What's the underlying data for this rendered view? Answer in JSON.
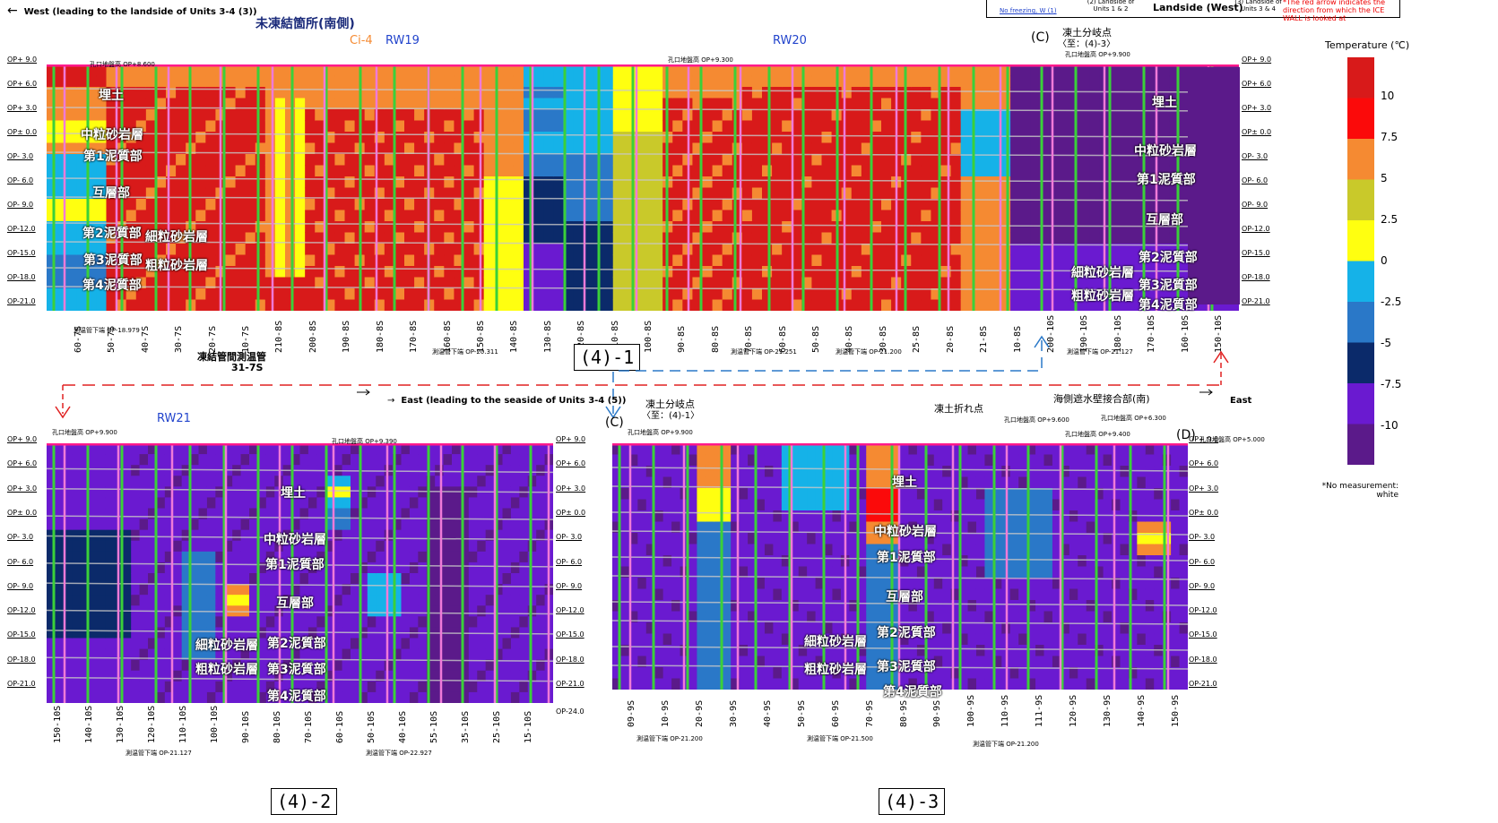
{
  "header": {
    "west_label": "West  (leading to the landside of Units 3-4 (3))",
    "east_label": "East  (leading to the seaside of Units 3-4 (5))",
    "east_short": "East",
    "legend_left_small": "No freezing, W (1)",
    "legend_mid_small": "(2) Landside of Units 1 & 2",
    "legend_landside": "Landside (West)",
    "legend_right_small": "(3) Landside of Units 3 & 4",
    "red_arrow_note": "*The red arrow indicates the direction from which the ICE WALL is looked at"
  },
  "colorbar": {
    "title": "Temperature (℃)",
    "ticks": [
      "10",
      "7.5",
      "5",
      "2.5",
      "0",
      "-2.5",
      "-5",
      "-7.5",
      "-10"
    ],
    "colors": [
      "#d81a1a",
      "#fb0a0a",
      "#f58a32",
      "#c9c92a",
      "#ffff10",
      "#15b2e8",
      "#2a78c8",
      "#0b2a6a",
      "#6a1ad0",
      "#5b1a8a"
    ],
    "no_measurement_note": "*No measurement: white"
  },
  "sections": {
    "s41": "(4)-1",
    "s42": "(4)-2",
    "s43": "(4)-3"
  },
  "labels": {
    "unfrozen": "未凍結箇所(南側)",
    "ci4": "Ci-4",
    "rw19": "RW19",
    "rw20": "RW20",
    "rw21": "RW21",
    "c_branch_top": "凍土分岐点",
    "c_branch_top2": "〈至：(4)-3〉",
    "c_branch_bot": "凍土分岐点",
    "c_branch_bot2": "〈至：(4)-1〉",
    "bend": "凍土折れ点",
    "seawall": "海側遮水壁接合部(南)",
    "c_mark": "(C)",
    "d_mark": "(D)",
    "pipe_label": "凍結管間測温管",
    "pipe_label2": "31-7S"
  },
  "strata": {
    "s1": [
      "埋土",
      "中粒砂岩層",
      "第1泥質部",
      "互層部",
      "第2泥質部",
      "細粒砂岩層",
      "第3泥質部",
      "粗粒砂岩層",
      "第4泥質部"
    ],
    "s1r": [
      "埋土",
      "中粒砂岩層",
      "第1泥質部",
      "互層部",
      "第2泥質部",
      "細粒砂岩層",
      "第3泥質部",
      "粗粒砂岩層",
      "第4泥質部"
    ],
    "s2": [
      "埋土",
      "中粒砂岩層",
      "第1泥質部",
      "互層部",
      "細粒砂岩層",
      "第2泥質部",
      "粗粒砂岩層",
      "第3泥質部",
      "第4泥質部"
    ],
    "s3": [
      "埋土",
      "中粒砂岩層",
      "第1泥質部",
      "互層部",
      "細粒砂岩層",
      "第2泥質部",
      "粗粒砂岩層",
      "第3泥質部",
      "第4泥質部"
    ]
  },
  "op_levels": [
    "OP+ 9.0",
    "OP+ 6.0",
    "OP+ 3.0",
    "OP± 0.0",
    "OP- 3.0",
    "OP- 6.0",
    "OP- 9.0",
    "OP-12.0",
    "OP-15.0",
    "OP-18.0",
    "OP-21.0"
  ],
  "op_extra": "OP-24.0",
  "ticks_s1": [
    "60-7S",
    "50-7S",
    "40-7S",
    "30-7S",
    "20-7S",
    "10-7S",
    "210-8S",
    "200-8S",
    "190-8S",
    "180-8S",
    "170-8S",
    "160-8S",
    "150-8S",
    "140-8S",
    "130-8S",
    "120-8S",
    "110-8S",
    "100-8S",
    "90-8S",
    "80-8S",
    "70-8S",
    "60-8S",
    "50-8S",
    "40-8S",
    "30-8S",
    "25-8S",
    "20-8S",
    "21-8S",
    "10-8S",
    "200-10S",
    "190-10S",
    "180-10S",
    "170-10S",
    "160-10S",
    "150-10S"
  ],
  "ticks_s2": [
    "150-10S",
    "140-10S",
    "130-10S",
    "120-10S",
    "110-10S",
    "100-10S",
    "90-10S",
    "80-10S",
    "70-10S",
    "60-10S",
    "50-10S",
    "40-10S",
    "55-10S",
    "35-10S",
    "25-10S",
    "15-10S"
  ],
  "ticks_s3": [
    "09-9S",
    "10-9S",
    "20-9S",
    "30-9S",
    "40-9S",
    "50-9S",
    "60-9S",
    "70-9S",
    "80-9S",
    "90-9S",
    "100-9S",
    "110-9S",
    "111-9S",
    "120-9S",
    "130-9S",
    "140-9S",
    "150-9S"
  ],
  "notes": {
    "s1_a": "測温管下端 OP-18.979",
    "s1_b": "測温管下端 OP-20.311",
    "s1_c": "測温管下端 OP-21.251",
    "s1_d": "測温管下端 OP-21.200",
    "s1_e": "測温管下端 OP-21.127",
    "s2_a": "測温管下端 OP-21.127",
    "s2_b": "測温管下端 OP-22.927",
    "s3_a": "測温管下端 OP-21.200",
    "s3_b": "測温管下端 OP-21.500",
    "s3_c": "測温管下端 OP-21.200",
    "gl1": "孔口地盤高 OP+8.600",
    "gl2": "孔口地盤高 OP+9.300",
    "gl3": "孔口地盤高 OP+9.900",
    "gl4": "孔口地盤高 OP+9.900",
    "gl5": "孔口地盤高 OP+9.390",
    "gl6": "孔口地盤高 OP+9.900",
    "gl7": "孔口地盤高 OP+9.600",
    "gl8": "孔口地盤高 OP+9.400",
    "gl9": "孔口地盤高 OP+6.300",
    "gl10": "孔口地盤高 OP+5.000"
  },
  "chart_data": [
    {
      "type": "heatmap",
      "title": "(4)-1",
      "ylabel": "OP (m)",
      "ylim": [
        -21,
        9
      ],
      "x": [
        "60-7S",
        "50-7S",
        "40-7S",
        "30-7S",
        "20-7S",
        "10-7S",
        "210-8S",
        "200-8S",
        "190-8S",
        "180-8S",
        "170-8S",
        "160-8S",
        "150-8S",
        "140-8S",
        "130-8S",
        "120-8S",
        "110-8S",
        "100-8S",
        "90-8S",
        "80-8S",
        "70-8S",
        "60-8S",
        "50-8S",
        "40-8S",
        "30-8S",
        "25-8S",
        "20-8S",
        "21-8S",
        "10-8S",
        "200-10S",
        "190-10S",
        "180-10S",
        "170-10S",
        "160-10S",
        "150-10S"
      ],
      "color_scale": {
        "min": -10,
        "max": 10,
        "unit": "℃"
      }
    },
    {
      "type": "heatmap",
      "title": "(4)-2",
      "ylabel": "OP (m)",
      "ylim": [
        -24,
        9
      ],
      "x": [
        "150-10S",
        "140-10S",
        "130-10S",
        "120-10S",
        "110-10S",
        "100-10S",
        "90-10S",
        "80-10S",
        "70-10S",
        "60-10S",
        "50-10S",
        "40-10S",
        "55-10S",
        "35-10S",
        "25-10S",
        "15-10S"
      ],
      "color_scale": {
        "min": -10,
        "max": 10,
        "unit": "℃"
      }
    },
    {
      "type": "heatmap",
      "title": "(4)-3",
      "ylabel": "OP (m)",
      "ylim": [
        -21,
        9
      ],
      "x": [
        "09-9S",
        "10-9S",
        "20-9S",
        "30-9S",
        "40-9S",
        "50-9S",
        "60-9S",
        "70-9S",
        "80-9S",
        "90-9S",
        "100-9S",
        "110-9S",
        "111-9S",
        "120-9S",
        "130-9S",
        "140-9S",
        "150-9S"
      ],
      "color_scale": {
        "min": -10,
        "max": 10,
        "unit": "℃"
      }
    }
  ]
}
